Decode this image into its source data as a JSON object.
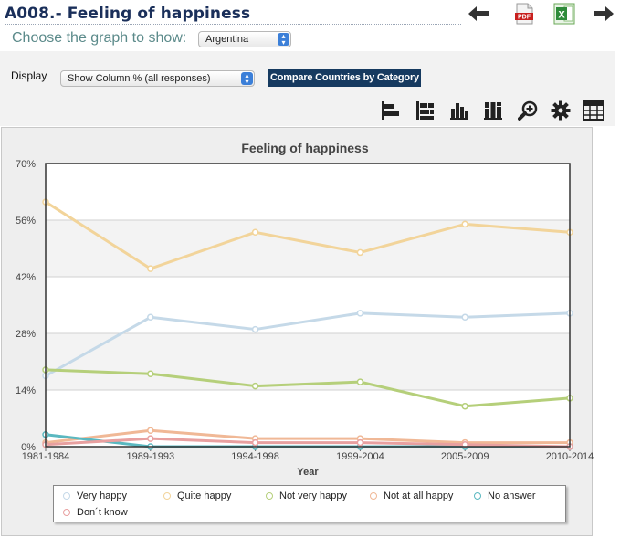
{
  "header": {
    "title": "A008.- Feeling of happiness"
  },
  "top_icons": {
    "back": "arrow-left-icon",
    "pdf": "pdf-icon",
    "pdf_label": "PDF",
    "excel": "excel-icon",
    "excel_label": "X",
    "forward": "arrow-right-icon"
  },
  "choose": {
    "label": "Choose the graph to show:",
    "selected": "Argentina"
  },
  "display": {
    "label": "Display",
    "selected": "Show Column % (all responses)"
  },
  "compare_button": "Compare Countries by Category",
  "toolbar": [
    "bar-horizontal-icon",
    "stacked-horizontal-icon",
    "bar-vertical-icon",
    "stacked-vertical-icon",
    "zoom-icon",
    "settings-gear-icon",
    "table-icon"
  ],
  "chart_data": {
    "type": "line",
    "title": "Feeling of happiness",
    "xlabel": "Year",
    "ylabel": "",
    "categories": [
      "1981-1984",
      "1989-1993",
      "1994-1998",
      "1999-2004",
      "2005-2009",
      "2010-2014"
    ],
    "ylim": [
      0,
      70
    ],
    "yticks": [
      "0%",
      "14%",
      "28%",
      "42%",
      "56%",
      "70%"
    ],
    "ytick_values": [
      0,
      14,
      28,
      42,
      56,
      70
    ],
    "grid": true,
    "legend_position": "bottom",
    "series": [
      {
        "name": "Very happy",
        "color": "#c5d9e8",
        "values": [
          17.5,
          32,
          29,
          33,
          32,
          33
        ]
      },
      {
        "name": "Quite happy",
        "color": "#f2d49a",
        "values": [
          60.5,
          44,
          53,
          48,
          55,
          53
        ]
      },
      {
        "name": "Not very happy",
        "color": "#b5cf7a",
        "values": [
          19,
          18,
          15,
          16,
          10,
          12
        ]
      },
      {
        "name": "Not at all happy",
        "color": "#f0b896",
        "values": [
          1,
          4,
          2,
          2,
          1,
          1
        ]
      },
      {
        "name": "No answer",
        "color": "#5ab8c0",
        "values": [
          3,
          0,
          0,
          0,
          0,
          0
        ]
      },
      {
        "name": "Don´t know",
        "color": "#e8a0a0",
        "values": [
          0.5,
          2,
          1,
          1,
          0.5,
          0
        ]
      }
    ]
  }
}
